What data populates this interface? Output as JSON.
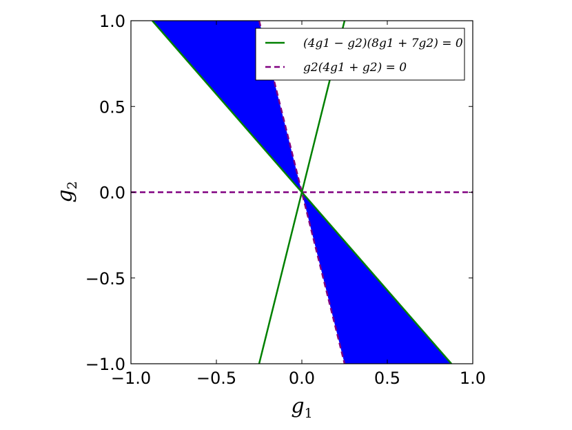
{
  "chart_data": {
    "type": "area",
    "xlabel": "g1",
    "ylabel": "g2",
    "xlabel_parts": {
      "base": "g",
      "sub": "1"
    },
    "ylabel_parts": {
      "base": "g",
      "sub": "2"
    },
    "xlim": [
      -1.0,
      1.0
    ],
    "ylim": [
      -1.0,
      1.0
    ],
    "xticks": [
      -1.0,
      -0.5,
      0.0,
      0.5,
      1.0
    ],
    "yticks": [
      -1.0,
      -0.5,
      0.0,
      0.5,
      1.0
    ],
    "xtick_labels": [
      "−1.0",
      "−0.5",
      "0.0",
      "0.5",
      "1.0"
    ],
    "ytick_labels": [
      "−1.0",
      "−0.5",
      "0.0",
      "0.5",
      "1.0"
    ],
    "grid": false,
    "legend_position": "top-right",
    "series": [
      {
        "name": "(4g1 − g2)(8g1 + 7g2) = 0",
        "style": "solid",
        "color": "#008000",
        "segments": [
          [
            [
              -0.25,
              -1.0
            ],
            [
              0.25,
              1.0
            ]
          ],
          [
            [
              -0.875,
              1.0
            ],
            [
              0.875,
              -1.0
            ]
          ]
        ]
      },
      {
        "name": "g2(4g1 + g2) = 0",
        "style": "dashed",
        "color": "#800080",
        "segments": [
          [
            [
              -1.0,
              0.0
            ],
            [
              1.0,
              0.0
            ]
          ],
          [
            [
              -0.25,
              1.0
            ],
            [
              0.25,
              -1.0
            ]
          ]
        ]
      }
    ],
    "shaded_regions": [
      {
        "color": "#0000ff",
        "polygon": [
          [
            0.0,
            0.0
          ],
          [
            -0.875,
            1.0
          ],
          [
            -0.25,
            1.0
          ]
        ]
      },
      {
        "color": "#0000ff",
        "polygon": [
          [
            0.0,
            0.0
          ],
          [
            0.875,
            -1.0
          ],
          [
            0.25,
            -1.0
          ]
        ]
      }
    ]
  }
}
